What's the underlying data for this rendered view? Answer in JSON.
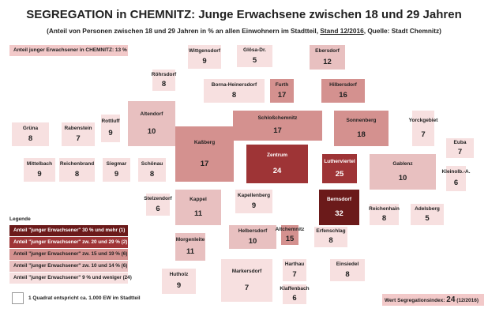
{
  "header": {
    "title": "SEGREGATION in CHEMNITZ: Junge Erwachsene zwischen 18 und 29 Jahren",
    "subtitle_start": "(Anteil von Personen zwischen 18 und 29 Jahren in % an allen Einwohnern im Stadtteil,",
    "subtitle_stand": "Stand 12/2016",
    "subtitle_end": ", Quelle: Stadt Chemnitz)"
  },
  "city_share": {
    "text": "Anteil junger Erwachsener in CHEMNITZ: 13 %",
    "color": "#f2c9c9"
  },
  "districts": [
    {
      "name": "Wittgensdorf",
      "value": 9,
      "color": "#f7e0e0"
    },
    {
      "name": "Glösa-Dr.",
      "value": 5,
      "color": "#f7e0e0"
    },
    {
      "name": "Ebersdorf",
      "value": 12,
      "color": "#e8c0c0"
    },
    {
      "name": "Röhrsdorf",
      "value": 8,
      "color": "#f7e0e0"
    },
    {
      "name": "Borna-Heinersdorf",
      "value": 8,
      "color": "#f7e0e0"
    },
    {
      "name": "Furth",
      "value": 17,
      "color": "#d4918f"
    },
    {
      "name": "Hilbersdorf",
      "value": 16,
      "color": "#d4918f"
    },
    {
      "name": "Altendorf",
      "value": 10,
      "color": "#e8c0c0"
    },
    {
      "name": "Rottluff",
      "value": 9,
      "color": "#f7e0e0"
    },
    {
      "name": "Grüna",
      "value": 8,
      "color": "#f7e0e0"
    },
    {
      "name": "Rabenstein",
      "value": 7,
      "color": "#f7e0e0"
    },
    {
      "name": "Schloßchemnitz",
      "value": 17,
      "color": "#d4918f"
    },
    {
      "name": "Sonnenberg",
      "value": 18,
      "color": "#d4918f"
    },
    {
      "name": "Yorckgebiet",
      "value": 7,
      "color": "#f7e0e0"
    },
    {
      "name": "Euba",
      "value": 7,
      "color": "#f7e0e0"
    },
    {
      "name": "Kaßberg",
      "value": 17,
      "color": "#d4918f"
    },
    {
      "name": "Zentrum",
      "value": 24,
      "color": "#9e3436"
    },
    {
      "name": "Lutherviertel",
      "value": 25,
      "color": "#9e3436"
    },
    {
      "name": "Gablenz",
      "value": 10,
      "color": "#e8c0c0"
    },
    {
      "name": "Mittelbach",
      "value": 9,
      "color": "#f7e0e0"
    },
    {
      "name": "Reichenbrand",
      "value": 8,
      "color": "#f7e0e0"
    },
    {
      "name": "Siegmar",
      "value": 9,
      "color": "#f7e0e0"
    },
    {
      "name": "Schönau",
      "value": 8,
      "color": "#f7e0e0"
    },
    {
      "name": "Kleinolb.-A.",
      "value": 6,
      "color": "#f7e0e0"
    },
    {
      "name": "Stelzendorf",
      "value": 6,
      "color": "#f7e0e0"
    },
    {
      "name": "Kappel",
      "value": 11,
      "color": "#e8c0c0"
    },
    {
      "name": "Kapellenberg",
      "value": 9,
      "color": "#f7e0e0"
    },
    {
      "name": "Bernsdorf",
      "value": 32,
      "color": "#6b1a1a"
    },
    {
      "name": "Reichenhain",
      "value": 8,
      "color": "#f7e0e0"
    },
    {
      "name": "Adelsberg",
      "value": 5,
      "color": "#f7e0e0"
    },
    {
      "name": "Helbersdorf",
      "value": 10,
      "color": "#e8c0c0"
    },
    {
      "name": "Altchemnitz",
      "value": 15,
      "color": "#d4918f"
    },
    {
      "name": "Erfenschlag",
      "value": 8,
      "color": "#f7e0e0"
    },
    {
      "name": "Morgenleite",
      "value": 11,
      "color": "#e8c0c0"
    },
    {
      "name": "Harthau",
      "value": 7,
      "color": "#f7e0e0"
    },
    {
      "name": "Einsiedel",
      "value": 8,
      "color": "#f7e0e0"
    },
    {
      "name": "Markersdorf",
      "value": 7,
      "color": "#f7e0e0"
    },
    {
      "name": "Hutholz",
      "value": 9,
      "color": "#f7e0e0"
    },
    {
      "name": "Klaffenbach",
      "value": 6,
      "color": "#f7e0e0"
    }
  ],
  "legend": {
    "title": "Legende",
    "items": [
      {
        "label": "Anteil \"junger Erwachsener\" 30 % und mehr (1)",
        "color": "#6b1a1a"
      },
      {
        "label": "Anteil \"junger Erwachsener\" zw. 20 und 29 % (2)",
        "color": "#9e3436"
      },
      {
        "label": "Anteil \"junger Erwachsener\" zw. 15 und 19 % (6)",
        "color": "#d4918f"
      },
      {
        "label": "Anteil \"junger Erwachsener\" zw. 10 und 14 % (6)",
        "color": "#e8c0c0"
      },
      {
        "label": "Anteil \"junger Erwachsener\" 9 % und weniger (24)",
        "color": "#f7e0e0"
      }
    ],
    "square_note": "1 Quadrat entspricht ca. 1.000 EW im Stadtteil"
  },
  "index_box": {
    "label": "Wert Segregationsindex:",
    "value": 24,
    "date": "(12/2016)",
    "color": "#f2c9c9"
  }
}
